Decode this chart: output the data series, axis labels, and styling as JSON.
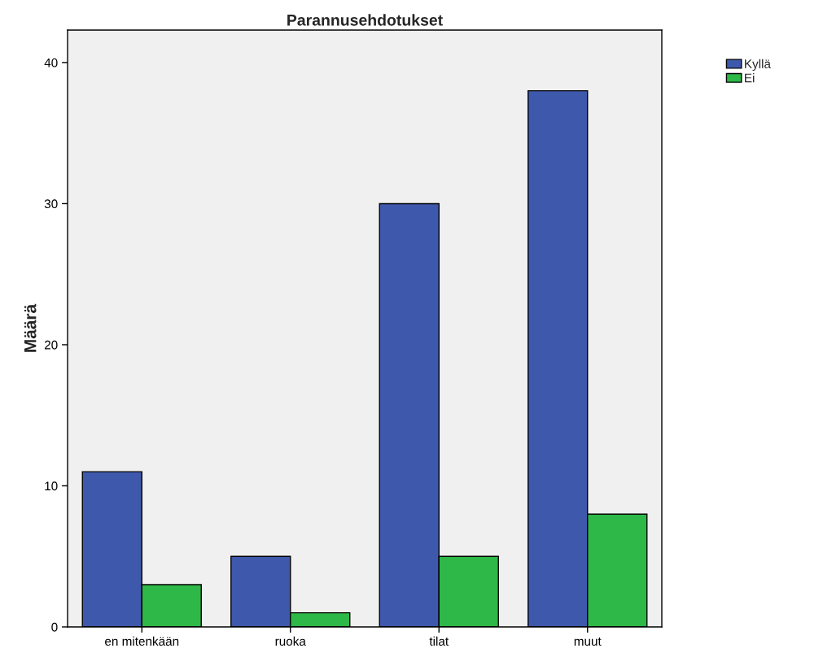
{
  "chart_data": {
    "type": "bar",
    "title": "Parannusehdotukset",
    "ylabel": "Määrä",
    "categories": [
      "en mitenkään",
      "ruoka",
      "tilat",
      "muut"
    ],
    "series": [
      {
        "name": "Kyllä",
        "color": "#3e58ac",
        "values": [
          11,
          5,
          30,
          38
        ]
      },
      {
        "name": "Ei",
        "color": "#2eb848",
        "values": [
          3,
          1,
          5,
          8
        ]
      }
    ],
    "ylim": [
      0,
      42.3
    ],
    "yticks": [
      0,
      10,
      20,
      30,
      40
    ],
    "grid": false,
    "legend": "top right"
  }
}
